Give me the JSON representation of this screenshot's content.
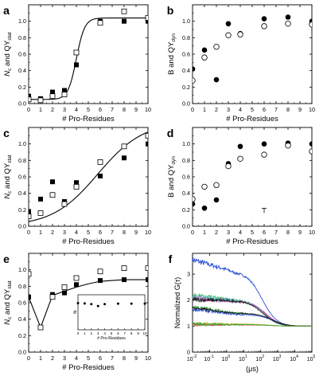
{
  "figure": {
    "panel_letters": [
      "a",
      "b",
      "c",
      "d",
      "e",
      "f"
    ]
  },
  "chart_data": [
    {
      "panel": "a",
      "type": "scatter",
      "xlabel": "# Pro-Residues",
      "ylabel_main": "N",
      "ylabel_sub1": "c",
      "ylabel_mid": " and QY",
      "ylabel_sub2": "stat",
      "xlim": [
        0,
        10
      ],
      "ylim": [
        0,
        1.2
      ],
      "xticks": [
        "0",
        "1",
        "2",
        "3",
        "4",
        "5",
        "6",
        "7",
        "8",
        "9",
        "10"
      ],
      "yticks": [
        "0.0",
        "0.2",
        "0.4",
        "0.6",
        "0.8",
        "1.0"
      ],
      "series": [
        {
          "marker": "filled-square",
          "x": [
            0,
            1,
            2,
            3,
            4,
            6,
            8,
            10
          ],
          "y": [
            0.09,
            0.06,
            0.14,
            0.16,
            0.47,
            1.0,
            1.0,
            1.0
          ]
        },
        {
          "marker": "open-square",
          "x": [
            0,
            1,
            2,
            3,
            4,
            6,
            8,
            10
          ],
          "y": [
            0.05,
            0.04,
            0.09,
            0.11,
            0.62,
            0.98,
            1.12,
            1.04
          ]
        }
      ],
      "fit": {
        "type": "sigmoid",
        "bottom": 0.05,
        "top": 1.04,
        "x0": 4.0,
        "slope": 0.35
      }
    },
    {
      "panel": "b",
      "type": "scatter",
      "xlabel": "# Pro-Residues",
      "ylabel_main": "B and QY",
      "ylabel_sub1": "dyn",
      "xlim": [
        0,
        10
      ],
      "ylim": [
        0,
        1.2
      ],
      "xticks": [
        "0",
        "1",
        "2",
        "3",
        "4",
        "5",
        "6",
        "7",
        "8",
        "9",
        "10"
      ],
      "yticks": [
        "0.0",
        "0.2",
        "0.4",
        "0.6",
        "0.8",
        "1.0"
      ],
      "series": [
        {
          "marker": "filled-circle",
          "x": [
            0,
            1,
            2,
            3,
            4,
            6,
            8,
            10
          ],
          "y": [
            0.42,
            0.65,
            0.29,
            0.97,
            0.85,
            1.03,
            1.05,
            1.0
          ]
        },
        {
          "marker": "open-circle",
          "x": [
            0,
            1,
            2,
            3,
            4,
            6,
            8,
            10
          ],
          "y": [
            0.28,
            0.56,
            0.69,
            0.83,
            0.84,
            0.94,
            0.97,
            0.96
          ]
        }
      ]
    },
    {
      "panel": "c",
      "type": "scatter",
      "xlabel": "# Pro-Residues",
      "ylabel_main": "N",
      "ylabel_sub1": "c",
      "ylabel_mid": " and QY",
      "ylabel_sub2": "stat",
      "xlim": [
        0,
        10
      ],
      "ylim": [
        0,
        1.2
      ],
      "xticks": [
        "0",
        "1",
        "2",
        "3",
        "4",
        "5",
        "6",
        "7",
        "8",
        "9",
        "10"
      ],
      "yticks": [
        "0.0",
        "0.2",
        "0.4",
        "0.6",
        "0.8",
        "1.0"
      ],
      "series": [
        {
          "marker": "filled-square",
          "x": [
            0,
            1,
            2,
            3,
            4,
            6,
            8,
            10
          ],
          "y": [
            0.18,
            0.33,
            0.54,
            0.3,
            0.53,
            0.61,
            0.83,
            1.0
          ]
        },
        {
          "marker": "open-square",
          "x": [
            0,
            1,
            2,
            3,
            4,
            6,
            8,
            10
          ],
          "y": [
            0.12,
            0.16,
            0.38,
            0.27,
            0.48,
            0.78,
            0.97,
            1.1
          ]
        }
      ],
      "fit": {
        "type": "sigmoid",
        "bottom": 0.0,
        "top": 1.27,
        "x0": 5.8,
        "slope": 1.9
      }
    },
    {
      "panel": "d",
      "type": "scatter",
      "xlabel": "# Pro-Residues",
      "ylabel_main": "B and QY",
      "ylabel_sub1": "dyn",
      "xlim": [
        0,
        10
      ],
      "ylim": [
        0,
        1.2
      ],
      "xticks": [
        "0",
        "1",
        "2",
        "3",
        "4",
        "5",
        "6",
        "7",
        "8",
        "9",
        "10"
      ],
      "yticks": [
        "0.0",
        "0.2",
        "0.4",
        "0.6",
        "0.8",
        "1.0"
      ],
      "series": [
        {
          "marker": "filled-circle",
          "x": [
            0,
            1,
            2,
            3,
            4,
            6,
            8,
            10
          ],
          "y": [
            0.27,
            0.22,
            0.32,
            0.76,
            0.97,
            1.0,
            1.01,
            1.0
          ]
        },
        {
          "marker": "open-circle",
          "x": [
            0,
            1,
            2,
            3,
            4,
            6,
            8,
            10
          ],
          "y": [
            0.33,
            0.48,
            0.5,
            0.73,
            0.82,
            0.87,
            0.98,
            0.91
          ]
        }
      ],
      "errorbar": {
        "x": 6,
        "y": 0.19
      }
    },
    {
      "panel": "e",
      "type": "scatter",
      "xlabel": "# Pro-Residues",
      "ylabel_main": "N",
      "ylabel_sub1": "c",
      "ylabel_mid": " and QY",
      "ylabel_sub2": "stat",
      "xlim": [
        0,
        10
      ],
      "ylim": [
        0,
        1.2
      ],
      "xticks": [
        "0",
        "1",
        "2",
        "3",
        "4",
        "5",
        "6",
        "7",
        "8",
        "9",
        "10"
      ],
      "yticks": [
        "0.0",
        "0.2",
        "0.4",
        "0.6",
        "0.8",
        "1.0"
      ],
      "series": [
        {
          "marker": "filled-square",
          "x": [
            0,
            1,
            2,
            3,
            4,
            6,
            8,
            10
          ],
          "y": [
            0.67,
            0.3,
            0.7,
            0.72,
            0.82,
            0.87,
            0.88,
            0.88
          ]
        },
        {
          "marker": "open-square",
          "x": [
            0,
            1,
            2,
            3,
            4,
            6,
            8,
            10
          ],
          "y": [
            0.95,
            0.3,
            0.67,
            0.79,
            0.9,
            0.98,
            1.02,
            1.02
          ]
        }
      ],
      "line": {
        "x": [
          0,
          1,
          2,
          3,
          4,
          5,
          6,
          7,
          8,
          9,
          10
        ],
        "y": [
          0.67,
          0.3,
          0.69,
          0.74,
          0.79,
          0.83,
          0.86,
          0.87,
          0.88,
          0.88,
          0.88
        ]
      },
      "inset": {
        "xlabel": "# Pro-Residues",
        "ylabel": "θ",
        "xlim": [
          0,
          10
        ],
        "ylim": [
          0,
          1.5
        ],
        "xticks": [
          "0",
          "1",
          "2",
          "3",
          "4",
          "5",
          "6",
          "7",
          "8",
          "9",
          "10"
        ],
        "x": [
          0,
          1,
          2,
          3,
          4,
          6,
          8,
          10
        ],
        "y": [
          1.14,
          1.13,
          1.1,
          1.02,
          1.1,
          1.12,
          1.12,
          1.12
        ]
      }
    },
    {
      "panel": "f",
      "type": "line",
      "xscale": "log",
      "xlabel": "(μs)",
      "ylabel": "Normalized G(τ)",
      "xlim": [
        0.01,
        100000
      ],
      "ylim": [
        0,
        3.8
      ],
      "xticks": [
        "10",
        "10",
        "10",
        "10",
        "10",
        "10",
        "10",
        "10"
      ],
      "xtick_exponents": [
        "-2",
        "-1",
        "0",
        "1",
        "2",
        "3",
        "4",
        "5"
      ],
      "yticks": [
        "0",
        "1",
        "2",
        "3"
      ],
      "series": [
        {
          "color": "#2a4ed8",
          "start": 3.55,
          "plateau": 3.1,
          "tau": 120,
          "noise": 0.12
        },
        {
          "color": "#2fae3a",
          "start": 2.15,
          "plateau": 2.0,
          "tau": 160,
          "noise": 0.13
        },
        {
          "color": "#d63b3b",
          "start": 2.1,
          "plateau": 1.98,
          "tau": 180,
          "noise": 0.12
        },
        {
          "color": "#c038c8",
          "start": 2.05,
          "plateau": 1.97,
          "tau": 200,
          "noise": 0.1
        },
        {
          "color": "#5fd0d8",
          "start": 2.12,
          "plateau": 2.0,
          "tau": 150,
          "noise": 0.14
        },
        {
          "color": "#1a1a1a",
          "start": 2.02,
          "plateau": 1.98,
          "tau": 140,
          "noise": 0.09
        },
        {
          "color": "#2fae3a",
          "start": 1.75,
          "plateau": 1.5,
          "tau": 400,
          "noise": 0.08
        },
        {
          "color": "#3358e0",
          "start": 1.65,
          "plateau": 1.45,
          "tau": 500,
          "noise": 0.07
        },
        {
          "color": "#1a1a1a",
          "start": 1.7,
          "plateau": 1.5,
          "tau": 450,
          "noise": 0.06
        },
        {
          "color": "#e0c030",
          "start": 1.1,
          "plateau": 1.08,
          "tau": 300,
          "noise": 0.07
        },
        {
          "color": "#d63b3b",
          "start": 1.05,
          "plateau": 1.05,
          "tau": 350,
          "noise": 0.05
        },
        {
          "color": "#2fae3a",
          "start": 1.08,
          "plateau": 1.06,
          "tau": 320,
          "noise": 0.06
        }
      ]
    }
  ]
}
